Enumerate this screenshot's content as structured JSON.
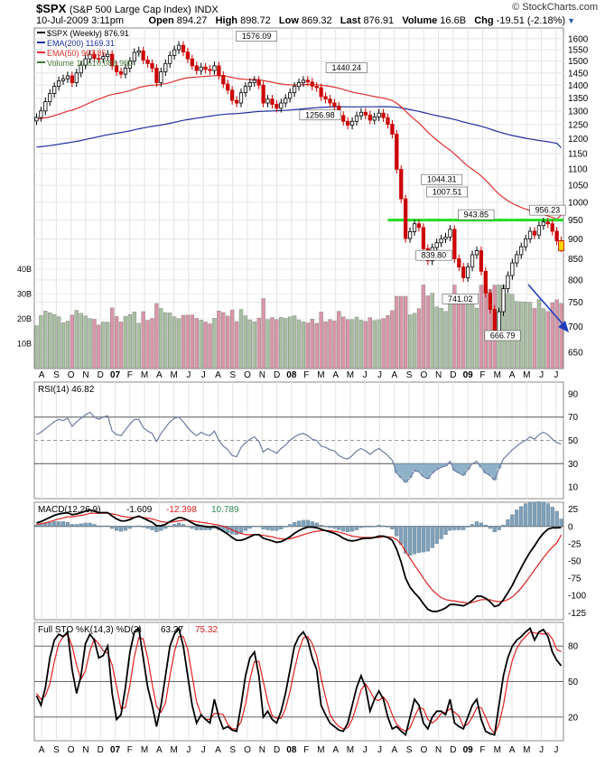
{
  "header": {
    "symbol": "$SPX",
    "name": "(S&P 500 Large Cap Index)",
    "exchange": "INDX",
    "date": "10-Jul-2009 3:11pm",
    "open_label": "Open",
    "open": "894.27",
    "high_label": "High",
    "high": "898.72",
    "low_label": "Low",
    "low": "869.32",
    "last_label": "Last",
    "last": "876.91",
    "volume_label": "Volume",
    "volume": "16.6B",
    "chg_label": "Chg",
    "chg": "-19.51 (-2.18%)",
    "brand": "© StockCharts.com"
  },
  "colors": {
    "price_up": "#000000",
    "price_down": "#cc0000",
    "ema200": "#1f2f9e",
    "ema50": "#e03030",
    "vol_up": "#a9bfa3",
    "vol_down": "#d996a8",
    "support": "#22dd22",
    "arrow": "#2040c0",
    "rsi": "#6d7ca3",
    "macd": "#000000",
    "signal": "#e02020",
    "hist": "#7fa0b8",
    "grid": "#c8c8c8",
    "panel_border": "#888888"
  },
  "chart_data": [
    {
      "type": "candlestick",
      "panel": "price",
      "legend": [
        {
          "label": "$SPX (Weekly) 876.91",
          "color": "#000000"
        },
        {
          "label": "EMA(200) 1169.31",
          "color": "#1f2f9e"
        },
        {
          "label": "EMA(50) 963.85",
          "color": "#e03030"
        },
        {
          "label": "Volume 16,610,088,960",
          "color": "#4b7a3c"
        }
      ],
      "ylim": [
        620,
        1650
      ],
      "y_scale": "log",
      "y_ticks": [
        650,
        700,
        750,
        800,
        850,
        900,
        950,
        1000,
        1050,
        1100,
        1150,
        1200,
        1250,
        1300,
        1350,
        1400,
        1450,
        1500,
        1550,
        1600
      ],
      "x_labels": [
        "A",
        "S",
        "O",
        "N",
        "D",
        "07",
        "F",
        "M",
        "A",
        "M",
        "J",
        "J",
        "A",
        "S",
        "O",
        "N",
        "D",
        "08",
        "F",
        "M",
        "A",
        "M",
        "J",
        "J",
        "A",
        "S",
        "O",
        "N",
        "D",
        "09",
        "F",
        "M",
        "A",
        "M",
        "J",
        "J"
      ],
      "close": [
        1276,
        1300,
        1335,
        1367,
        1395,
        1418,
        1426,
        1438,
        1410,
        1450,
        1483,
        1510,
        1530,
        1512,
        1510,
        1520,
        1530,
        1480,
        1455,
        1445,
        1470,
        1500,
        1538,
        1545,
        1505,
        1490,
        1470,
        1410,
        1455,
        1490,
        1525,
        1550,
        1570,
        1540,
        1510,
        1480,
        1460,
        1475,
        1465,
        1460,
        1480,
        1440,
        1405,
        1380,
        1340,
        1330,
        1370,
        1395,
        1410,
        1420,
        1400,
        1330,
        1345,
        1325,
        1310,
        1330,
        1348,
        1370,
        1395,
        1410,
        1420,
        1413,
        1396,
        1390,
        1355,
        1345,
        1330,
        1318,
        1283,
        1262,
        1248,
        1262,
        1282,
        1295,
        1285,
        1266,
        1278,
        1292,
        1275,
        1251,
        1216,
        1099,
        1010,
        901,
        919,
        940,
        930,
        875,
        845,
        878,
        890,
        900,
        905,
        925,
        850,
        830,
        805,
        830,
        860,
        870,
        820,
        770,
        735,
        685,
        730,
        780,
        810,
        840,
        860,
        880,
        900,
        920,
        910,
        935,
        945,
        940,
        920,
        895,
        876.91
      ],
      "ema200": [
        1171.9,
        1173.2,
        1174.8,
        1176.7,
        1178.8,
        1181.2,
        1183.7,
        1186.3,
        1188.6,
        1191.3,
        1194.3,
        1197.6,
        1201,
        1204.2,
        1207.4,
        1210.7,
        1214,
        1216.7,
        1219.3,
        1221.8,
        1224.6,
        1227.7,
        1231.3,
        1234.8,
        1237.9,
        1240.9,
        1243.7,
        1245.9,
        1248.5,
        1251.5,
        1254.8,
        1258.3,
        1262,
        1265.3,
        1268.2,
        1270.8,
        1273.2,
        1275.8,
        1278.2,
        1280.6,
        1283.2,
        1285.4,
        1287.1,
        1288.5,
        1289.5,
        1290.4,
        1291.6,
        1293.1,
        1294.8,
        1296.6,
        1298.1,
        1298.7,
        1299.5,
        1300.1,
        1300.6,
        1301.3,
        1302.2,
        1303.4,
        1304.8,
        1306.3,
        1308,
        1309.5,
        1310.9,
        1312.3,
        1313.3,
        1314.2,
        1314.9,
        1315.5,
        1315.6,
        1315.6,
        1315.3,
        1315.2,
        1315.3,
        1315.5,
        1315.6,
        1315.6,
        1315.8,
        1316.1,
        1316.2,
        1316.1,
        1315.5,
        1313.9,
        1311.6,
        1308.1,
        1304.8,
        1301.7,
        1298.4,
        1294.5,
        1290.3,
        1286.4,
        1282.7,
        1279.1,
        1275.6,
        1272.3,
        1268.3,
        1264.1,
        1259.7,
        1255.6,
        1251.8,
        1248.1,
        1244,
        1239.3,
        1234.3,
        1228.8,
        1223.8,
        1219.4,
        1215.3,
        1211.6,
        1208.2,
        1205.1,
        1202.2,
        1199.5,
        1196.8,
        1194.4,
        1192.1,
        1189.8,
        1187.3,
        1184.7,
        1169.31
      ],
      "ema50": [
        1270.9,
        1272.0,
        1274.4,
        1278.0,
        1282.6,
        1287.9,
        1293.3,
        1298.9,
        1303.1,
        1308.8,
        1315.6,
        1323.2,
        1331.3,
        1338.3,
        1344.9,
        1351.6,
        1358.4,
        1363.0,
        1366.5,
        1369.5,
        1373.3,
        1378.1,
        1384.2,
        1390.2,
        1394.4,
        1397.8,
        1400.3,
        1400.6,
        1402.7,
        1406.1,
        1410.7,
        1416.1,
        1422.1,
        1426.7,
        1430.0,
        1432.0,
        1433.1,
        1434.8,
        1436.0,
        1437.0,
        1438.7,
        1438.8,
        1437.5,
        1435.2,
        1431.2,
        1427.1,
        1424.9,
        1423.8,
        1423.2,
        1423.1,
        1422.2,
        1418.6,
        1415.6,
        1411.9,
        1407.9,
        1404.8,
        1402.6,
        1401.4,
        1401.2,
        1401.5,
        1402.3,
        1402.7,
        1402.5,
        1402.0,
        1400.1,
        1397.9,
        1395.2,
        1392.1,
        1387.8,
        1382.7,
        1377.2,
        1372.5,
        1368.8,
        1365.8,
        1362.4,
        1358.3,
        1354.9,
        1352.2,
        1348.8,
        1344.6,
        1339.0,
        1329.1,
        1316.1,
        1299.0,
        1283.4,
        1269.2,
        1255.2,
        1239.5,
        1223.0,
        1208.9,
        1195.8,
        1183.5,
        1171.8,
        1161.4,
        1148.4,
        1135.2,
        1121.6,
        1109.6,
        1099.2,
        1089.6,
        1078.4,
        1065.6,
        1051.8,
        1036.6,
        1023.7,
        1013.2,
        1004.3,
        996.9,
        990.5,
        985.1,
        980.7,
        976.5,
        972.2,
        968.4,
        964.9,
        961.3,
        957.2,
        952.3,
        963.85
      ],
      "volume_ticks": [
        "10B",
        "20B",
        "30B",
        "40B"
      ],
      "annotations": [
        {
          "label": "1576.09",
          "at": 0.42,
          "price": 1576.09
        },
        {
          "label": "1440.24",
          "at": 0.59,
          "price": 1440.24
        },
        {
          "label": "1256.98",
          "at": 0.54,
          "price": 1256.98
        },
        {
          "label": "1044.31",
          "at": 0.77,
          "price": 1044.31
        },
        {
          "label": "1007.51",
          "at": 0.78,
          "price": 1007.51
        },
        {
          "label": "943.85",
          "at": 0.835,
          "price": 943.85
        },
        {
          "label": "839.80",
          "at": 0.755,
          "price": 839.8
        },
        {
          "label": "741.02",
          "at": 0.805,
          "price": 741.02
        },
        {
          "label": "666.79",
          "at": 0.885,
          "price": 666.79
        },
        {
          "label": "956.23",
          "at": 0.97,
          "price": 956.23
        }
      ],
      "support_level": 950
    },
    {
      "type": "line",
      "panel": "rsi",
      "legend": "RSI(14) 46.82",
      "ylim": [
        0,
        100
      ],
      "y_ticks": [
        10,
        30,
        50,
        70,
        90
      ],
      "reference_lines": [
        30,
        50,
        70
      ],
      "values": [
        55,
        57,
        60,
        63,
        66,
        68,
        67,
        69,
        62,
        66,
        69,
        72,
        74,
        70,
        68,
        70,
        71,
        58,
        55,
        54,
        59,
        64,
        68,
        68,
        61,
        58,
        56,
        49,
        56,
        61,
        66,
        69,
        70,
        66,
        61,
        57,
        54,
        57,
        55,
        54,
        58,
        50,
        45,
        42,
        37,
        36,
        44,
        48,
        51,
        53,
        49,
        40,
        43,
        41,
        39,
        43,
        46,
        50,
        53,
        55,
        56,
        54,
        51,
        50,
        45,
        44,
        42,
        41,
        37,
        35,
        34,
        37,
        41,
        43,
        41,
        38,
        41,
        43,
        40,
        37,
        33,
        22,
        18,
        14,
        18,
        24,
        23,
        19,
        17,
        22,
        25,
        27,
        28,
        32,
        24,
        22,
        20,
        25,
        30,
        32,
        27,
        22,
        20,
        16,
        26,
        34,
        38,
        42,
        45,
        48,
        50,
        53,
        51,
        55,
        57,
        55,
        51,
        48,
        46.82
      ]
    },
    {
      "type": "line",
      "panel": "macd",
      "legend": {
        "name": "MACD(12,26,9)",
        "values": [
          "-1.609",
          "-12.398",
          "10.789"
        ],
        "colors": [
          "#000000",
          "#e02020",
          "#2e8b57"
        ]
      },
      "ylim": [
        -135,
        35
      ],
      "y_ticks": [
        -125,
        -100,
        -75,
        -50,
        -25,
        0,
        25
      ],
      "macd": [
        5,
        7,
        10,
        13,
        16,
        18,
        19,
        20,
        17,
        18,
        20,
        22,
        24,
        22,
        20,
        20,
        20,
        15,
        11,
        8,
        8,
        10,
        13,
        15,
        12,
        9,
        6,
        1,
        1,
        3,
        7,
        10,
        13,
        12,
        9,
        5,
        2,
        1,
        0,
        -1,
        0,
        -3,
        -7,
        -11,
        -16,
        -20,
        -20,
        -18,
        -15,
        -12,
        -12,
        -17,
        -19,
        -21,
        -23,
        -22,
        -19,
        -15,
        -10,
        -6,
        -3,
        -1,
        -1,
        -2,
        -4,
        -6,
        -8,
        -10,
        -13,
        -17,
        -20,
        -21,
        -20,
        -18,
        -17,
        -17,
        -16,
        -14,
        -14,
        -16,
        -20,
        -33,
        -52,
        -75,
        -88,
        -96,
        -103,
        -112,
        -120,
        -123,
        -123,
        -121,
        -118,
        -113,
        -113,
        -114,
        -115,
        -112,
        -107,
        -101,
        -101,
        -104,
        -109,
        -116,
        -114,
        -106,
        -96,
        -85,
        -72,
        -60,
        -48,
        -37,
        -28,
        -18,
        -10,
        -4,
        -2,
        -2,
        -1.609
      ],
      "signal": [
        3,
        4,
        5,
        7,
        9,
        11,
        12,
        14,
        14,
        15,
        16,
        17,
        19,
        19,
        19,
        19,
        19,
        18,
        17,
        15,
        14,
        13,
        13,
        14,
        13,
        12,
        11,
        9,
        7,
        6,
        6,
        7,
        8,
        9,
        9,
        8,
        7,
        6,
        5,
        4,
        3,
        2,
        0,
        -2,
        -5,
        -8,
        -10,
        -12,
        -12,
        -12,
        -12,
        -13,
        -14,
        -15,
        -17,
        -18,
        -18,
        -18,
        -16,
        -14,
        -12,
        -10,
        -8,
        -7,
        -6,
        -6,
        -6,
        -7,
        -8,
        -10,
        -12,
        -14,
        -15,
        -16,
        -16,
        -16,
        -16,
        -16,
        -15,
        -15,
        -16,
        -19,
        -26,
        -36,
        -46,
        -56,
        -65,
        -75,
        -84,
        -92,
        -98,
        -103,
        -106,
        -107,
        -108,
        -109,
        -110,
        -111,
        -110,
        -108,
        -106,
        -106,
        -106,
        -108,
        -109,
        -108,
        -106,
        -102,
        -96,
        -89,
        -81,
        -72,
        -63,
        -54,
        -45,
        -37,
        -30,
        -24,
        -12.398
      ],
      "histogram": [
        2,
        3,
        5,
        6,
        7,
        7,
        7,
        6,
        3,
        3,
        4,
        5,
        5,
        3,
        1,
        1,
        1,
        -3,
        -6,
        -7,
        -6,
        -3,
        0,
        1,
        -1,
        -3,
        -5,
        -8,
        -6,
        -3,
        1,
        3,
        5,
        3,
        0,
        -3,
        -5,
        -5,
        -5,
        -5,
        -3,
        -5,
        -7,
        -9,
        -11,
        -12,
        -10,
        -6,
        -3,
        0,
        0,
        -4,
        -5,
        -6,
        -6,
        -4,
        -1,
        3,
        6,
        8,
        9,
        9,
        7,
        5,
        2,
        0,
        -2,
        -3,
        -5,
        -7,
        -8,
        -7,
        -5,
        -2,
        -1,
        -1,
        0,
        2,
        1,
        -1,
        -4,
        -14,
        -26,
        -39,
        -42,
        -40,
        -38,
        -37,
        -36,
        -31,
        -25,
        -18,
        -12,
        -6,
        -5,
        -5,
        -5,
        -1,
        3,
        7,
        5,
        2,
        -3,
        -8,
        -5,
        2,
        10,
        17,
        24,
        29,
        33,
        35,
        35,
        36,
        35,
        33,
        28,
        22,
        10.789
      ]
    },
    {
      "type": "line",
      "panel": "stochastic",
      "legend": {
        "name": "Full STO %K(14,3) %D(3)",
        "values": [
          "63.27",
          "75.32"
        ],
        "colors": [
          "#000000",
          "#e02020"
        ]
      },
      "ylim": [
        0,
        100
      ],
      "y_ticks": [
        20,
        50,
        80
      ],
      "reference_lines": [
        20,
        50,
        80
      ],
      "k": [
        38,
        30,
        45,
        70,
        85,
        90,
        88,
        92,
        60,
        40,
        55,
        82,
        90,
        85,
        70,
        72,
        80,
        40,
        18,
        22,
        45,
        75,
        92,
        95,
        70,
        45,
        30,
        12,
        30,
        55,
        80,
        90,
        95,
        80,
        55,
        30,
        15,
        22,
        18,
        15,
        35,
        20,
        10,
        12,
        9,
        8,
        30,
        55,
        70,
        75,
        55,
        20,
        25,
        18,
        15,
        25,
        40,
        60,
        80,
        88,
        92,
        85,
        70,
        60,
        30,
        22,
        15,
        12,
        9,
        8,
        15,
        30,
        45,
        55,
        45,
        25,
        35,
        42,
        35,
        20,
        10,
        12,
        8,
        5,
        20,
        35,
        30,
        15,
        10,
        20,
        25,
        25,
        22,
        35,
        15,
        12,
        10,
        20,
        30,
        35,
        18,
        8,
        6,
        5,
        30,
        55,
        70,
        80,
        85,
        88,
        92,
        95,
        85,
        92,
        94,
        88,
        75,
        68,
        63.27
      ],
      "d": [
        40,
        35,
        38,
        48,
        67,
        82,
        88,
        90,
        80,
        64,
        52,
        59,
        76,
        86,
        82,
        76,
        74,
        64,
        46,
        27,
        28,
        47,
        71,
        87,
        86,
        70,
        48,
        29,
        24,
        32,
        55,
        75,
        88,
        88,
        77,
        55,
        33,
        22,
        18,
        18,
        23,
        23,
        22,
        14,
        10,
        10,
        16,
        31,
        52,
        67,
        67,
        50,
        33,
        21,
        19,
        19,
        27,
        42,
        60,
        76,
        87,
        88,
        82,
        72,
        53,
        37,
        22,
        16,
        12,
        10,
        11,
        18,
        30,
        43,
        48,
        42,
        35,
        34,
        37,
        32,
        22,
        14,
        10,
        8,
        11,
        20,
        28,
        27,
        18,
        15,
        18,
        23,
        24,
        27,
        24,
        21,
        12,
        14,
        20,
        28,
        28,
        20,
        11,
        6,
        14,
        30,
        52,
        68,
        78,
        84,
        88,
        92,
        91,
        91,
        90,
        91,
        86,
        77,
        75.32
      ]
    }
  ]
}
